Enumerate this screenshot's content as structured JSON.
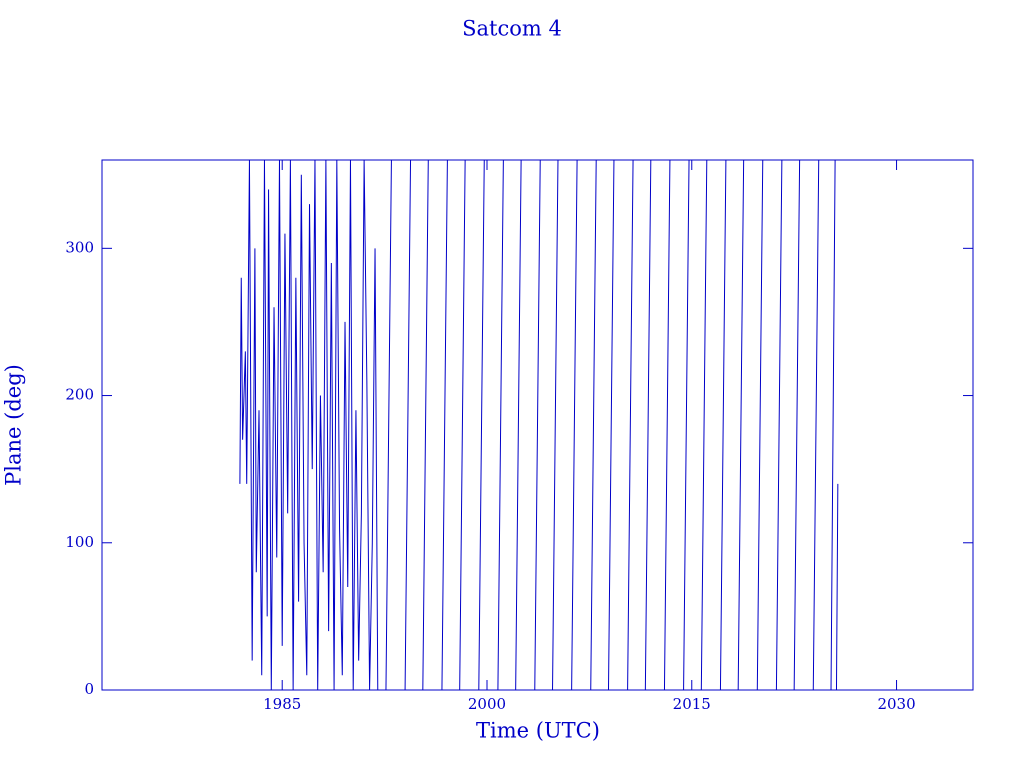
{
  "chart_data": {
    "type": "line",
    "title": "Satcom 4",
    "x_label": "Time (UTC)",
    "y_label": "Plane (deg)",
    "color": "#0000c8",
    "xlim": [
      1971.8,
      2035.6
    ],
    "xticks": [
      1985,
      2000,
      2015,
      2030
    ],
    "ylim": [
      0,
      360
    ],
    "yticks": [
      0,
      100,
      200,
      300
    ],
    "x": [
      1981.9,
      1982.0,
      1982.1,
      1982.3,
      1982.4,
      1982.6,
      1982.8,
      1983.0,
      1983.1,
      1983.3,
      1983.5,
      1983.7,
      1983.9,
      1984.0,
      1984.2,
      1984.4,
      1984.6,
      1984.8,
      1985.0,
      1985.2,
      1985.4,
      1985.6,
      1985.8,
      1986.0,
      1986.2,
      1986.4,
      1986.6,
      1986.8,
      1987.0,
      1987.2,
      1987.4,
      1987.6,
      1987.8,
      1988.0,
      1988.2,
      1988.4,
      1988.6,
      1988.8,
      1989.0,
      1989.2,
      1989.4,
      1989.6,
      1989.8,
      1990.0,
      1990.2,
      1990.4,
      1990.6,
      1990.8,
      1991.0,
      1991.2,
      1991.4,
      1991.6,
      1991.8,
      1992.0,
      1992.3,
      1992.6,
      1993.0,
      1993.2,
      1994.0,
      1994.4,
      1994.6,
      1995.3,
      1995.7,
      1995.9,
      1996.7,
      1997.1,
      1997.3,
      1998.0,
      1998.4,
      1998.6,
      1999.4,
      1999.8,
      2000.0,
      2000.8,
      2001.2,
      2001.4,
      2002.1,
      2002.5,
      2002.7,
      2003.5,
      2003.9,
      2004.1,
      2004.8,
      2005.2,
      2005.4,
      2006.2,
      2006.6,
      2006.8,
      2007.6,
      2008.0,
      2008.2,
      2008.9,
      2009.3,
      2009.5,
      2010.3,
      2010.7,
      2010.9,
      2011.6,
      2012.0,
      2012.2,
      2013.0,
      2013.4,
      2013.6,
      2014.4,
      2014.8,
      2015.0,
      2015.7,
      2016.1,
      2016.3,
      2017.1,
      2017.5,
      2017.7,
      2018.4,
      2018.8,
      2019.0,
      2019.8,
      2020.2,
      2020.4,
      2021.2,
      2021.6,
      2021.8,
      2022.5,
      2022.9,
      2023.1,
      2023.9,
      2024.3,
      2024.5,
      2025.2,
      2025.5,
      2025.55,
      2025.6,
      2025.7
    ],
    "values": [
      140,
      280,
      170,
      230,
      140,
      360,
      20,
      300,
      80,
      190,
      10,
      360,
      50,
      340,
      0,
      260,
      90,
      360,
      30,
      310,
      120,
      360,
      0,
      280,
      60,
      350,
      100,
      10,
      330,
      150,
      360,
      0,
      200,
      80,
      360,
      40,
      290,
      0,
      360,
      110,
      10,
      250,
      70,
      360,
      0,
      190,
      20,
      120,
      360,
      210,
      0,
      100,
      300,
      0,
      null,
      0,
      360,
      null,
      0,
      360,
      null,
      0,
      360,
      null,
      0,
      360,
      null,
      0,
      360,
      null,
      0,
      360,
      null,
      0,
      360,
      null,
      0,
      360,
      null,
      0,
      360,
      null,
      0,
      360,
      null,
      0,
      360,
      null,
      0,
      360,
      null,
      0,
      360,
      null,
      0,
      360,
      null,
      0,
      360,
      null,
      0,
      360,
      null,
      0,
      360,
      null,
      0,
      360,
      null,
      0,
      360,
      null,
      0,
      360,
      null,
      0,
      360,
      null,
      0,
      360,
      null,
      0,
      360,
      null,
      0,
      360,
      null,
      0,
      360,
      null,
      0,
      140
    ]
  }
}
